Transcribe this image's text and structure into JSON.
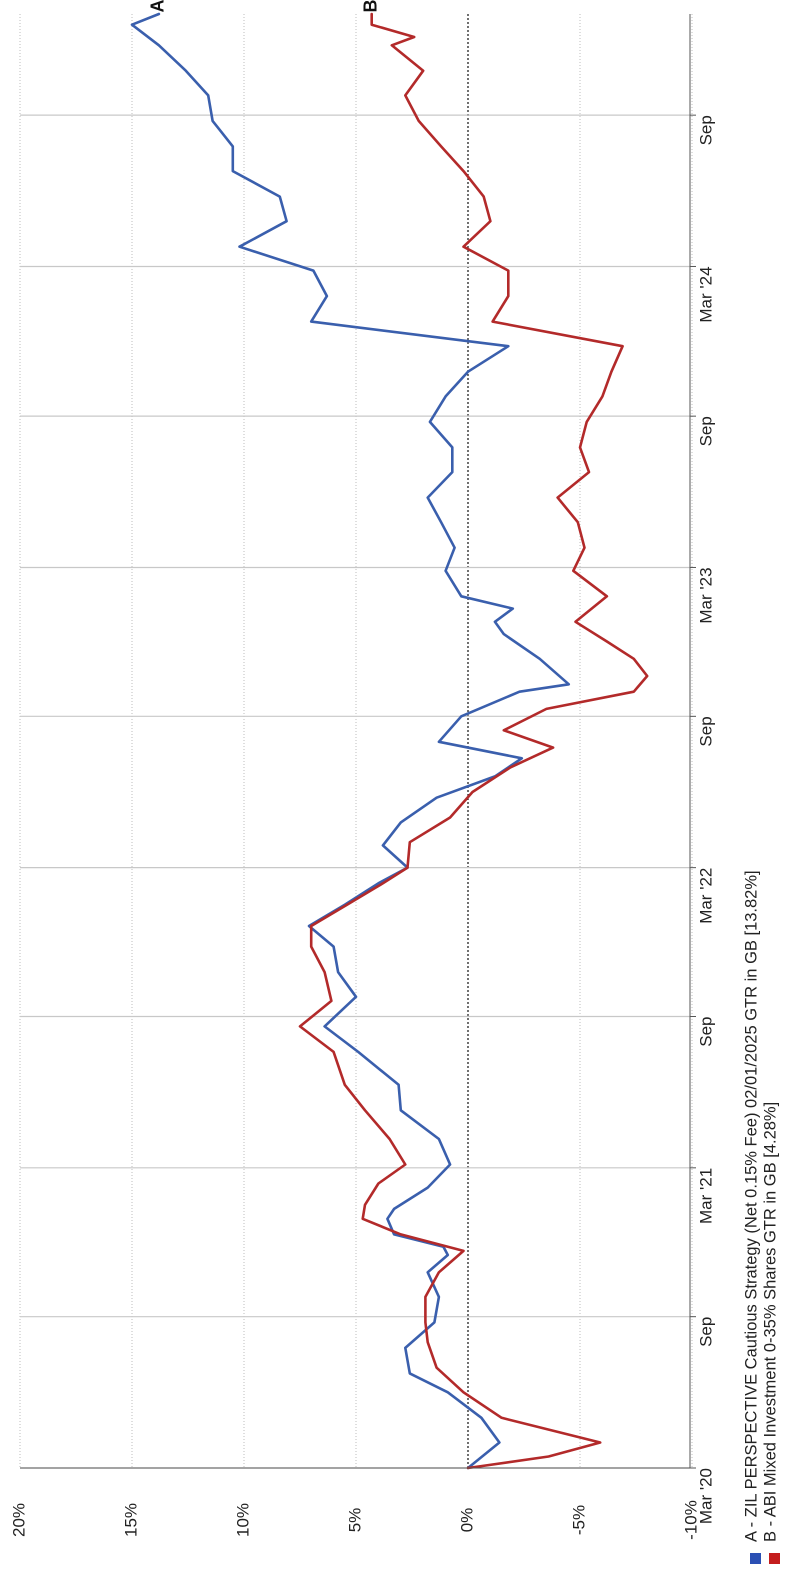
{
  "chart_data": {
    "type": "line",
    "orientation": "rotated-90-ccw",
    "ylim": [
      -10,
      20
    ],
    "y_ticks": [
      20,
      15,
      10,
      5,
      0,
      -5,
      -10
    ],
    "y_tick_labels": [
      "20%",
      "15%",
      "10%",
      "5%",
      "0%",
      "-5%",
      "-10%"
    ],
    "x_start": "2020-03-01",
    "x_end": "2025-01-02",
    "x_ticks": [
      "2020-03-01",
      "2020-09-01",
      "2021-03-01",
      "2021-09-01",
      "2022-03-01",
      "2022-09-01",
      "2023-03-01",
      "2023-09-01",
      "2024-03-01",
      "2024-09-01"
    ],
    "x_tick_labels": [
      "Mar '20",
      "Sep",
      "Mar '21",
      "Sep",
      "Mar '22",
      "Sep",
      "Mar '23",
      "Sep",
      "Mar '24",
      "Sep"
    ],
    "grid": true,
    "zero_line": "dashed",
    "series": [
      {
        "key": "A",
        "name": "A - ZIL PERSPECTIVE Cautious Strategy (Net 0.15% Fee) 02/01/2025 GTR in GB [13.82%]",
        "end_label": "A",
        "color": "#3a5fad",
        "legend_color": "#2b50b4",
        "points": [
          [
            "2020-03-01",
            0.0
          ],
          [
            "2020-04-01",
            -1.4
          ],
          [
            "2020-05-01",
            -0.6
          ],
          [
            "2020-06-01",
            0.9
          ],
          [
            "2020-06-24",
            2.6
          ],
          [
            "2020-07-25",
            2.8
          ],
          [
            "2020-08-25",
            1.5
          ],
          [
            "2020-09-25",
            1.3
          ],
          [
            "2020-10-25",
            1.8
          ],
          [
            "2020-11-15",
            0.9
          ],
          [
            "2020-11-25",
            1.1
          ],
          [
            "2020-12-10",
            3.3
          ],
          [
            "2020-12-29",
            3.6
          ],
          [
            "2021-01-10",
            3.3
          ],
          [
            "2021-02-05",
            1.8
          ],
          [
            "2021-03-05",
            0.8
          ],
          [
            "2021-04-05",
            1.3
          ],
          [
            "2021-05-10",
            3.0
          ],
          [
            "2021-06-10",
            3.1
          ],
          [
            "2021-07-20",
            4.9
          ],
          [
            "2021-08-20",
            6.4
          ],
          [
            "2021-09-25",
            5.0
          ],
          [
            "2021-10-25",
            5.8
          ],
          [
            "2021-11-25",
            6.0
          ],
          [
            "2021-12-20",
            7.1
          ],
          [
            "2022-01-15",
            5.5
          ],
          [
            "2022-02-10",
            4.0
          ],
          [
            "2022-03-01",
            2.7
          ],
          [
            "2022-03-28",
            3.8
          ],
          [
            "2022-04-25",
            3.0
          ],
          [
            "2022-05-25",
            1.4
          ],
          [
            "2022-06-20",
            -1.2
          ],
          [
            "2022-07-12",
            -2.4
          ],
          [
            "2022-08-01",
            1.3
          ],
          [
            "2022-09-01",
            0.3
          ],
          [
            "2022-10-01",
            -2.3
          ],
          [
            "2022-10-10",
            -4.5
          ],
          [
            "2022-11-10",
            -3.2
          ],
          [
            "2022-12-10",
            -1.6
          ],
          [
            "2022-12-25",
            -1.2
          ],
          [
            "2023-01-10",
            -2.0
          ],
          [
            "2023-01-25",
            0.3
          ],
          [
            "2023-02-25",
            1.0
          ],
          [
            "2023-03-25",
            0.6
          ],
          [
            "2023-04-25",
            1.2
          ],
          [
            "2023-05-25",
            1.8
          ],
          [
            "2023-06-25",
            0.7
          ],
          [
            "2023-07-25",
            0.7
          ],
          [
            "2023-08-25",
            1.7
          ],
          [
            "2023-09-25",
            1.0
          ],
          [
            "2023-10-25",
            0.0
          ],
          [
            "2023-11-25",
            -1.8
          ],
          [
            "2023-12-25",
            7.0
          ],
          [
            "2024-01-25",
            6.3
          ],
          [
            "2024-02-25",
            6.9
          ],
          [
            "2024-03-25",
            10.2
          ],
          [
            "2024-04-25",
            8.1
          ],
          [
            "2024-05-25",
            8.4
          ],
          [
            "2024-06-25",
            10.5
          ],
          [
            "2024-07-25",
            10.5
          ],
          [
            "2024-08-25",
            11.4
          ],
          [
            "2024-09-25",
            11.6
          ],
          [
            "2024-10-25",
            12.6
          ],
          [
            "2024-11-25",
            13.8
          ],
          [
            "2024-12-20",
            15.0
          ],
          [
            "2025-01-02",
            13.8
          ]
        ]
      },
      {
        "key": "B",
        "name": "B - ABI Mixed Investment 0-35% Shares GTR in GB [4.28%]",
        "end_label": "B",
        "color": "#b32a2a",
        "legend_color": "#c41d1d",
        "points": [
          [
            "2020-03-01",
            0.0
          ],
          [
            "2020-03-15",
            -3.6
          ],
          [
            "2020-04-01",
            -5.9
          ],
          [
            "2020-05-01",
            -1.5
          ],
          [
            "2020-06-01",
            0.2
          ],
          [
            "2020-07-01",
            1.4
          ],
          [
            "2020-08-01",
            1.8
          ],
          [
            "2020-08-25",
            1.9
          ],
          [
            "2020-09-25",
            1.9
          ],
          [
            "2020-10-25",
            1.3
          ],
          [
            "2020-11-20",
            0.2
          ],
          [
            "2020-12-10",
            3.0
          ],
          [
            "2020-12-29",
            4.7
          ],
          [
            "2021-01-15",
            4.6
          ],
          [
            "2021-02-10",
            4.0
          ],
          [
            "2021-03-05",
            2.8
          ],
          [
            "2021-04-05",
            3.5
          ],
          [
            "2021-05-10",
            4.6
          ],
          [
            "2021-06-10",
            5.5
          ],
          [
            "2021-07-20",
            6.0
          ],
          [
            "2021-08-20",
            7.5
          ],
          [
            "2021-09-20",
            6.1
          ],
          [
            "2021-10-25",
            6.4
          ],
          [
            "2021-11-25",
            7.0
          ],
          [
            "2021-12-20",
            7.0
          ],
          [
            "2022-01-15",
            5.4
          ],
          [
            "2022-02-10",
            3.8
          ],
          [
            "2022-03-01",
            2.7
          ],
          [
            "2022-04-01",
            2.6
          ],
          [
            "2022-05-01",
            0.8
          ],
          [
            "2022-06-01",
            -0.2
          ],
          [
            "2022-07-01",
            -1.9
          ],
          [
            "2022-07-25",
            -3.8
          ],
          [
            "2022-08-15",
            -1.6
          ],
          [
            "2022-09-10",
            -3.5
          ],
          [
            "2022-10-01",
            -7.4
          ],
          [
            "2022-10-20",
            -8.0
          ],
          [
            "2022-11-10",
            -7.4
          ],
          [
            "2022-12-01",
            -6.2
          ],
          [
            "2022-12-25",
            -4.8
          ],
          [
            "2023-01-25",
            -6.2
          ],
          [
            "2023-02-25",
            -4.7
          ],
          [
            "2023-03-25",
            -5.2
          ],
          [
            "2023-04-25",
            -4.9
          ],
          [
            "2023-05-25",
            -4.0
          ],
          [
            "2023-06-25",
            -5.4
          ],
          [
            "2023-07-25",
            -5.0
          ],
          [
            "2023-08-25",
            -5.3
          ],
          [
            "2023-09-25",
            -6.0
          ],
          [
            "2023-10-25",
            -6.4
          ],
          [
            "2023-11-25",
            -6.9
          ],
          [
            "2023-12-25",
            -1.1
          ],
          [
            "2024-01-25",
            -1.8
          ],
          [
            "2024-02-25",
            -1.8
          ],
          [
            "2024-03-25",
            0.2
          ],
          [
            "2024-04-25",
            -1.0
          ],
          [
            "2024-05-25",
            -0.7
          ],
          [
            "2024-06-25",
            0.2
          ],
          [
            "2024-07-25",
            1.2
          ],
          [
            "2024-08-25",
            2.2
          ],
          [
            "2024-09-25",
            2.8
          ],
          [
            "2024-10-25",
            2.0
          ],
          [
            "2024-11-25",
            3.4
          ],
          [
            "2024-12-05",
            2.4
          ],
          [
            "2024-12-20",
            4.3
          ],
          [
            "2025-01-02",
            4.3
          ]
        ]
      }
    ]
  }
}
